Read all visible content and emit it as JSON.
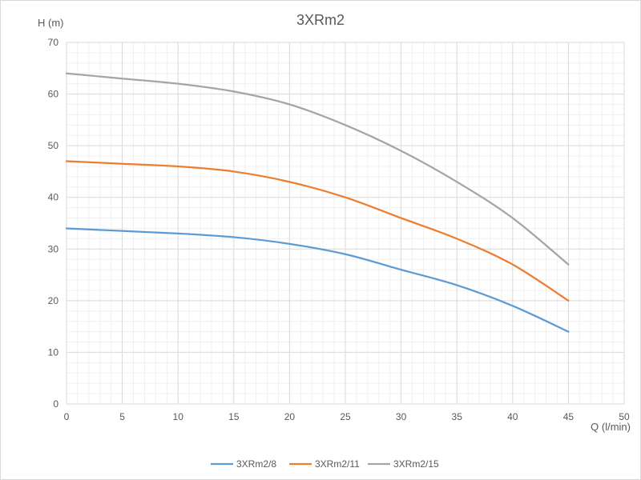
{
  "chart_data": {
    "type": "line",
    "title": "3XRm2",
    "xlabel": "Q (l/min)",
    "ylabel": "H (m)",
    "xlim": [
      0,
      50
    ],
    "ylim": [
      0,
      70
    ],
    "x_ticks": [
      0,
      5,
      10,
      15,
      20,
      25,
      30,
      35,
      40,
      45,
      50
    ],
    "y_ticks": [
      0,
      10,
      20,
      30,
      40,
      50,
      60,
      70
    ],
    "grid": {
      "major": true,
      "minor": true
    },
    "legend_position": "bottom",
    "x": [
      0,
      5,
      10,
      15,
      20,
      25,
      30,
      35,
      40,
      45
    ],
    "series": [
      {
        "name": "3XRm2/8",
        "color": "#5b9bd5",
        "values": [
          34,
          33.5,
          33,
          32.3,
          31,
          29,
          26,
          23,
          19,
          14
        ]
      },
      {
        "name": "3XRm2/11",
        "color": "#ed7d31",
        "values": [
          47,
          46.5,
          46,
          45,
          43,
          40,
          36,
          32,
          27,
          20
        ]
      },
      {
        "name": "3XRm2/15",
        "color": "#a5a5a5",
        "values": [
          64,
          63,
          62,
          60.5,
          58,
          54,
          49,
          43,
          36,
          27
        ]
      }
    ]
  }
}
